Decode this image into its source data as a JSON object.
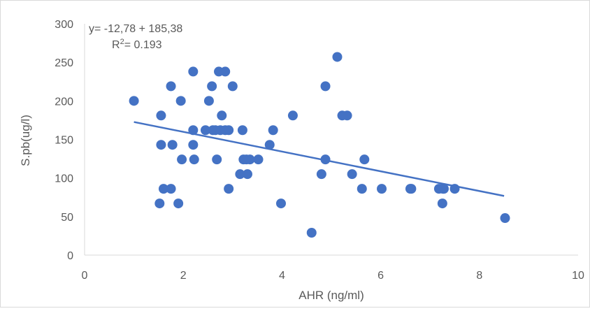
{
  "chart_data": {
    "type": "scatter",
    "title": "",
    "xlabel": "AHR (ng/ml)",
    "ylabel": "S.pb(ug/l)",
    "xlim": [
      0,
      10
    ],
    "ylim": [
      0,
      300
    ],
    "x_ticks": [
      0,
      2,
      4,
      6,
      8,
      10
    ],
    "y_ticks": [
      0,
      50,
      100,
      150,
      200,
      250,
      300
    ],
    "grid": false,
    "legend": "none",
    "colors": {
      "marker": "#4472C4",
      "trendline": "#4472C4",
      "axis_text": "#595959",
      "axis_line": "#D9D9D9"
    },
    "annotation": {
      "equation": "y= -12,78 + 185,38",
      "r2_prefix": "R",
      "r2_sup": "2",
      "r2_suffix": "= 0.193"
    },
    "trendline": {
      "x": [
        1.0,
        8.5
      ],
      "y": [
        172.6,
        76.7
      ]
    },
    "points": [
      {
        "x": 1.0,
        "y": 200
      },
      {
        "x": 1.55,
        "y": 181
      },
      {
        "x": 1.55,
        "y": 143
      },
      {
        "x": 1.6,
        "y": 86
      },
      {
        "x": 1.52,
        "y": 67
      },
      {
        "x": 1.75,
        "y": 219
      },
      {
        "x": 1.78,
        "y": 143
      },
      {
        "x": 1.75,
        "y": 86
      },
      {
        "x": 1.9,
        "y": 67
      },
      {
        "x": 1.95,
        "y": 200
      },
      {
        "x": 1.97,
        "y": 124
      },
      {
        "x": 2.2,
        "y": 238
      },
      {
        "x": 2.2,
        "y": 162
      },
      {
        "x": 2.2,
        "y": 143
      },
      {
        "x": 2.22,
        "y": 124
      },
      {
        "x": 2.45,
        "y": 162
      },
      {
        "x": 2.52,
        "y": 200
      },
      {
        "x": 2.58,
        "y": 219
      },
      {
        "x": 2.6,
        "y": 162
      },
      {
        "x": 2.65,
        "y": 162
      },
      {
        "x": 2.68,
        "y": 124
      },
      {
        "x": 2.72,
        "y": 238
      },
      {
        "x": 2.75,
        "y": 162
      },
      {
        "x": 2.78,
        "y": 181
      },
      {
        "x": 2.85,
        "y": 238
      },
      {
        "x": 2.85,
        "y": 162
      },
      {
        "x": 2.92,
        "y": 162
      },
      {
        "x": 2.92,
        "y": 86
      },
      {
        "x": 3.0,
        "y": 219
      },
      {
        "x": 3.15,
        "y": 105
      },
      {
        "x": 3.2,
        "y": 162
      },
      {
        "x": 3.22,
        "y": 124
      },
      {
        "x": 3.28,
        "y": 124
      },
      {
        "x": 3.3,
        "y": 105
      },
      {
        "x": 3.35,
        "y": 124
      },
      {
        "x": 3.52,
        "y": 124
      },
      {
        "x": 3.75,
        "y": 143
      },
      {
        "x": 3.82,
        "y": 162
      },
      {
        "x": 3.98,
        "y": 67
      },
      {
        "x": 4.22,
        "y": 181
      },
      {
        "x": 4.6,
        "y": 29
      },
      {
        "x": 4.8,
        "y": 105
      },
      {
        "x": 4.88,
        "y": 124
      },
      {
        "x": 4.88,
        "y": 219
      },
      {
        "x": 5.12,
        "y": 257
      },
      {
        "x": 5.22,
        "y": 181
      },
      {
        "x": 5.32,
        "y": 181
      },
      {
        "x": 5.42,
        "y": 105
      },
      {
        "x": 5.62,
        "y": 86
      },
      {
        "x": 5.67,
        "y": 124
      },
      {
        "x": 6.02,
        "y": 86
      },
      {
        "x": 6.6,
        "y": 86
      },
      {
        "x": 6.62,
        "y": 86
      },
      {
        "x": 7.18,
        "y": 86
      },
      {
        "x": 7.26,
        "y": 86
      },
      {
        "x": 7.28,
        "y": 86
      },
      {
        "x": 7.25,
        "y": 67
      },
      {
        "x": 7.5,
        "y": 86
      },
      {
        "x": 8.52,
        "y": 48
      }
    ]
  }
}
